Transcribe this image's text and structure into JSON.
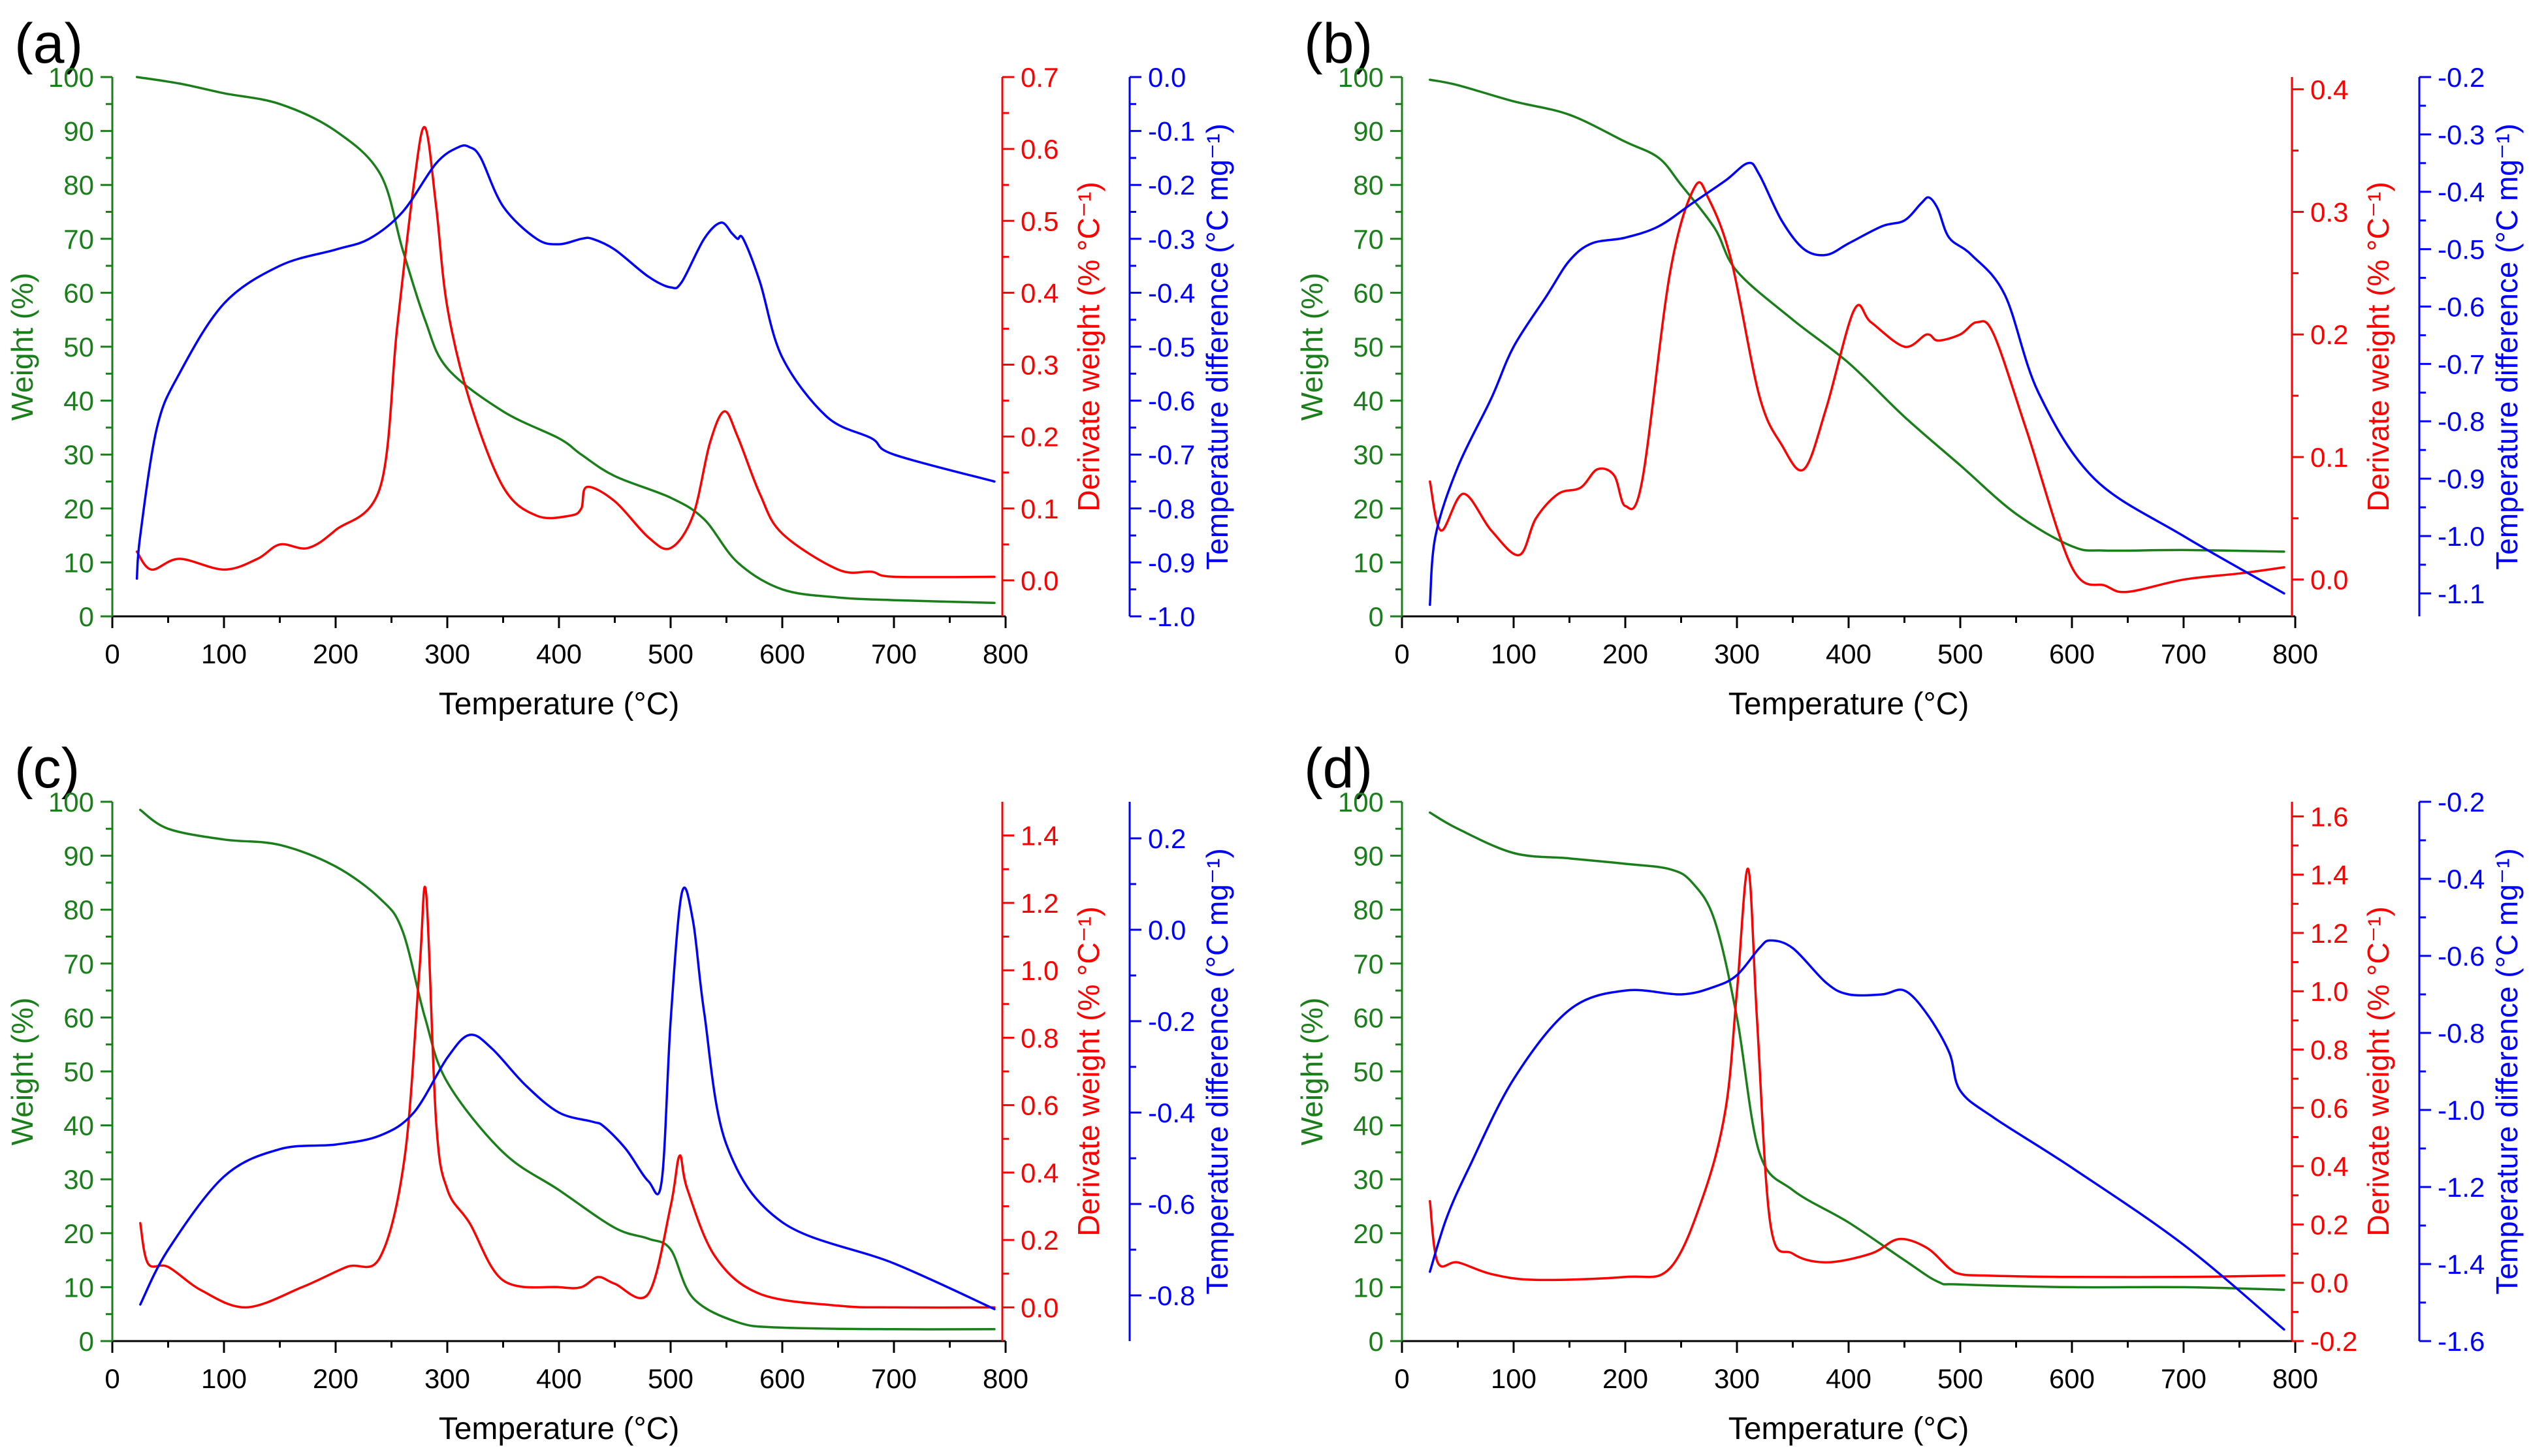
{
  "colors": {
    "weight": "#1a7f1a",
    "derivative": "#ff0000",
    "tdiff": "#0000ff",
    "axis": "#000000"
  },
  "chart_data": [
    {
      "panel_label": "(a)",
      "type": "line",
      "xlabel": "Temperature (°C)",
      "xlim": [
        0,
        800
      ],
      "xticks": [
        0,
        100,
        200,
        300,
        400,
        500,
        600,
        700,
        800
      ],
      "y1": {
        "label": "Weight (%)",
        "lim": [
          0,
          100
        ],
        "ticks": [
          0,
          10,
          20,
          30,
          40,
          50,
          60,
          70,
          80,
          90,
          100
        ]
      },
      "y2": {
        "label": "Derivate weight (% °C⁻¹)",
        "lim": [
          -0.05,
          0.7
        ],
        "ticks": [
          0.0,
          0.1,
          0.2,
          0.3,
          0.4,
          0.5,
          0.6,
          0.7
        ],
        "tick_labels": [
          "0.0",
          "0.1",
          "0.2",
          "0.3",
          "0.4",
          "0.5",
          "0.6",
          "0.7"
        ]
      },
      "y3": {
        "label": "Temperature difference (°C mg⁻¹)",
        "lim": [
          -1.0,
          0.0
        ],
        "ticks": [
          0.0,
          -0.1,
          -0.2,
          -0.3,
          -0.4,
          -0.5,
          -0.6,
          -0.7,
          -0.8,
          -0.9,
          -1.0
        ],
        "tick_labels": [
          "0.0",
          "-0.1",
          "-0.2",
          "-0.3",
          "-0.4",
          "-0.5",
          "-0.6",
          "-0.7",
          "-0.8",
          "-0.9",
          "-1.0"
        ]
      },
      "series": [
        {
          "axis": "y1",
          "color": "weight",
          "x": [
            22,
            60,
            100,
            150,
            200,
            240,
            260,
            280,
            300,
            350,
            400,
            420,
            450,
            500,
            530,
            560,
            600,
            650,
            700,
            790
          ],
          "values": [
            100,
            98.8,
            97,
            95,
            90,
            82,
            68,
            55,
            46,
            38,
            33,
            30,
            26,
            22,
            18,
            10,
            5,
            3.5,
            3,
            2.5
          ]
        },
        {
          "axis": "y2",
          "color": "derivative",
          "x": [
            22,
            35,
            60,
            100,
            130,
            150,
            175,
            200,
            240,
            255,
            270,
            280,
            290,
            300,
            320,
            350,
            380,
            410,
            420,
            425,
            450,
            480,
            500,
            520,
            535,
            548,
            560,
            580,
            600,
            650,
            680,
            700,
            790
          ],
          "values": [
            0.04,
            0.015,
            0.03,
            0.015,
            0.03,
            0.05,
            0.045,
            0.07,
            0.13,
            0.35,
            0.55,
            0.63,
            0.52,
            0.38,
            0.25,
            0.13,
            0.09,
            0.09,
            0.1,
            0.13,
            0.11,
            0.06,
            0.045,
            0.09,
            0.19,
            0.235,
            0.2,
            0.12,
            0.065,
            0.015,
            0.012,
            0.005,
            0.005
          ]
        },
        {
          "axis": "y3",
          "color": "tdiff",
          "x": [
            22,
            25,
            40,
            60,
            100,
            150,
            200,
            230,
            260,
            290,
            310,
            320,
            330,
            350,
            380,
            400,
            420,
            430,
            450,
            480,
            500,
            510,
            530,
            545,
            555,
            560,
            565,
            580,
            600,
            640,
            680,
            700,
            790
          ],
          "values": [
            -0.93,
            -0.85,
            -0.65,
            -0.55,
            -0.42,
            -0.35,
            -0.32,
            -0.3,
            -0.25,
            -0.16,
            -0.13,
            -0.13,
            -0.15,
            -0.24,
            -0.3,
            -0.31,
            -0.3,
            -0.3,
            -0.32,
            -0.37,
            -0.39,
            -0.38,
            -0.3,
            -0.27,
            -0.29,
            -0.3,
            -0.3,
            -0.38,
            -0.52,
            -0.63,
            -0.67,
            -0.7,
            -0.75
          ]
        }
      ]
    },
    {
      "panel_label": "(b)",
      "type": "line",
      "xlabel": "Temperature (°C)",
      "xlim": [
        0,
        800
      ],
      "xticks": [
        0,
        100,
        200,
        300,
        400,
        500,
        600,
        700,
        800
      ],
      "y1": {
        "label": "Weight (%)",
        "lim": [
          0,
          100
        ],
        "ticks": [
          0,
          10,
          20,
          30,
          40,
          50,
          60,
          70,
          80,
          90,
          100
        ]
      },
      "y2": {
        "label": "Derivate weight (% °C⁻¹)",
        "lim": [
          -0.03,
          0.41
        ],
        "ticks": [
          0.0,
          0.1,
          0.2,
          0.3,
          0.4
        ],
        "tick_labels": [
          "0.0",
          "0.1",
          "0.2",
          "0.3",
          "0.4"
        ]
      },
      "y3": {
        "label": "Temperature difference (°C mg⁻¹)",
        "lim": [
          -1.14,
          -0.2
        ],
        "ticks": [
          -0.2,
          -0.3,
          -0.4,
          -0.5,
          -0.6,
          -0.7,
          -0.8,
          -0.9,
          -1.0,
          -1.1
        ],
        "tick_labels": [
          "-0.2",
          "-0.3",
          "-0.4",
          "-0.5",
          "-0.6",
          "-0.7",
          "-0.8",
          "-0.9",
          "-1.0",
          "-1.1"
        ]
      },
      "series": [
        {
          "axis": "y1",
          "color": "weight",
          "x": [
            25,
            50,
            100,
            150,
            200,
            230,
            250,
            280,
            300,
            350,
            400,
            450,
            500,
            550,
            600,
            630,
            700,
            790
          ],
          "values": [
            99.5,
            98.5,
            95.5,
            93,
            88,
            85,
            80,
            72,
            64,
            55,
            47,
            37,
            28,
            19,
            13,
            12.2,
            12.3,
            12
          ]
        },
        {
          "axis": "y2",
          "color": "derivative",
          "x": [
            25,
            35,
            55,
            80,
            105,
            120,
            140,
            160,
            175,
            190,
            200,
            215,
            240,
            262,
            275,
            295,
            320,
            340,
            360,
            380,
            405,
            420,
            450,
            470,
            480,
            500,
            515,
            530,
            560,
            600,
            630,
            650,
            700,
            750,
            790
          ],
          "values": [
            0.08,
            0.04,
            0.07,
            0.04,
            0.02,
            0.05,
            0.07,
            0.075,
            0.09,
            0.085,
            0.06,
            0.08,
            0.25,
            0.32,
            0.31,
            0.26,
            0.15,
            0.11,
            0.09,
            0.14,
            0.22,
            0.21,
            0.19,
            0.2,
            0.195,
            0.2,
            0.21,
            0.2,
            0.12,
            0.01,
            -0.005,
            -0.01,
            0,
            0.005,
            0.01
          ]
        },
        {
          "axis": "y3",
          "color": "tdiff",
          "x": [
            25,
            30,
            50,
            80,
            100,
            130,
            150,
            170,
            200,
            230,
            260,
            290,
            310,
            320,
            340,
            360,
            380,
            400,
            430,
            450,
            465,
            472,
            480,
            490,
            510,
            540,
            570,
            620,
            700,
            790
          ],
          "values": [
            -1.12,
            -1.0,
            -0.88,
            -0.76,
            -0.67,
            -0.58,
            -0.52,
            -0.49,
            -0.48,
            -0.46,
            -0.42,
            -0.38,
            -0.35,
            -0.37,
            -0.45,
            -0.5,
            -0.51,
            -0.49,
            -0.46,
            -0.45,
            -0.42,
            -0.41,
            -0.43,
            -0.48,
            -0.51,
            -0.58,
            -0.75,
            -0.9,
            -1.0,
            -1.1
          ]
        }
      ]
    },
    {
      "panel_label": "(c)",
      "type": "line",
      "xlabel": "Temperature (°C)",
      "xlim": [
        0,
        800
      ],
      "xticks": [
        0,
        100,
        200,
        300,
        400,
        500,
        600,
        700,
        800
      ],
      "y1": {
        "label": "Weight (%)",
        "lim": [
          0,
          100
        ],
        "ticks": [
          0,
          10,
          20,
          30,
          40,
          50,
          60,
          70,
          80,
          90,
          100
        ]
      },
      "y2": {
        "label": "Derivate weight (% °C⁻¹)",
        "lim": [
          -0.1,
          1.5
        ],
        "ticks": [
          0.0,
          0.2,
          0.4,
          0.6,
          0.8,
          1.0,
          1.2,
          1.4
        ],
        "tick_labels": [
          "0.0",
          "0.2",
          "0.4",
          "0.6",
          "0.8",
          "1.0",
          "1.2",
          "1.4"
        ]
      },
      "y3": {
        "label": "Temperature difference (°C mg⁻¹)",
        "lim": [
          -0.9,
          0.28
        ],
        "ticks": [
          0.2,
          0.0,
          -0.2,
          -0.4,
          -0.6,
          -0.8
        ],
        "tick_labels": [
          "0.2",
          "0.0",
          "-0.2",
          "-0.4",
          "-0.6",
          "-0.8"
        ]
      },
      "series": [
        {
          "axis": "y1",
          "color": "weight",
          "x": [
            25,
            50,
            100,
            150,
            200,
            240,
            260,
            280,
            300,
            350,
            400,
            450,
            480,
            500,
            520,
            560,
            600,
            700,
            790
          ],
          "values": [
            98.5,
            95,
            93,
            92,
            88,
            82,
            76,
            60,
            48,
            35,
            28,
            21,
            19,
            17,
            8,
            3.5,
            2.5,
            2.2,
            2.2
          ]
        },
        {
          "axis": "y2",
          "color": "derivative",
          "x": [
            25,
            32,
            50,
            80,
            120,
            170,
            210,
            240,
            262,
            275,
            281,
            290,
            300,
            320,
            350,
            400,
            420,
            435,
            450,
            480,
            500,
            508,
            515,
            540,
            580,
            650,
            700,
            790
          ],
          "values": [
            0.25,
            0.13,
            0.12,
            0.05,
            0,
            0.06,
            0.12,
            0.15,
            0.45,
            1.0,
            1.23,
            0.55,
            0.35,
            0.25,
            0.08,
            0.06,
            0.06,
            0.09,
            0.07,
            0.04,
            0.3,
            0.45,
            0.35,
            0.15,
            0.04,
            0.005,
            0,
            0
          ]
        },
        {
          "axis": "y3",
          "color": "tdiff",
          "x": [
            25,
            50,
            100,
            150,
            200,
            240,
            270,
            300,
            320,
            340,
            370,
            400,
            430,
            440,
            460,
            480,
            492,
            500,
            510,
            520,
            530,
            550,
            600,
            700,
            790
          ],
          "values": [
            -0.82,
            -0.7,
            -0.54,
            -0.48,
            -0.47,
            -0.45,
            -0.4,
            -0.28,
            -0.23,
            -0.26,
            -0.34,
            -0.4,
            -0.42,
            -0.43,
            -0.48,
            -0.55,
            -0.55,
            -0.2,
            0.08,
            0.02,
            -0.18,
            -0.47,
            -0.64,
            -0.73,
            -0.83
          ]
        }
      ]
    },
    {
      "panel_label": "(d)",
      "type": "line",
      "xlabel": "Temperature (°C)",
      "xlim": [
        0,
        800
      ],
      "xticks": [
        0,
        100,
        200,
        300,
        400,
        500,
        600,
        700,
        800
      ],
      "y1": {
        "label": "Weight (%)",
        "lim": [
          0,
          100
        ],
        "ticks": [
          0,
          10,
          20,
          30,
          40,
          50,
          60,
          70,
          80,
          90,
          100
        ]
      },
      "y2": {
        "label": "Derivate weight (% °C⁻¹)",
        "lim": [
          -0.2,
          1.65
        ],
        "ticks": [
          -0.2,
          0.0,
          0.2,
          0.4,
          0.6,
          0.8,
          1.0,
          1.2,
          1.4,
          1.6
        ],
        "tick_labels": [
          "-0.2",
          "0.0",
          "0.2",
          "0.4",
          "0.6",
          "0.8",
          "1.0",
          "1.2",
          "1.4",
          "1.6"
        ]
      },
      "y3": {
        "label": "Temperature difference (°C mg⁻¹)",
        "lim": [
          -1.6,
          -0.2
        ],
        "ticks": [
          -0.2,
          -0.4,
          -0.6,
          -0.8,
          -1.0,
          -1.2,
          -1.4,
          -1.6
        ],
        "tick_labels": [
          "-0.2",
          "-0.4",
          "-0.6",
          "-0.8",
          "-1.0",
          "-1.2",
          "-1.4",
          "-1.6"
        ]
      },
      "series": [
        {
          "axis": "y1",
          "color": "weight",
          "x": [
            25,
            50,
            100,
            150,
            200,
            240,
            260,
            280,
            300,
            320,
            350,
            400,
            450,
            480,
            500,
            600,
            700,
            790
          ],
          "values": [
            98,
            95,
            90.5,
            89.5,
            88.5,
            87.5,
            85,
            78,
            60,
            35,
            28,
            22,
            15,
            11,
            10.5,
            10,
            10,
            9.5
          ]
        },
        {
          "axis": "y2",
          "color": "derivative",
          "x": [
            25,
            32,
            50,
            80,
            120,
            200,
            240,
            270,
            290,
            300,
            310,
            318,
            330,
            350,
            380,
            420,
            445,
            470,
            490,
            500,
            520,
            600,
            700,
            790
          ],
          "values": [
            0.28,
            0.07,
            0.07,
            0.03,
            0.01,
            0.02,
            0.05,
            0.3,
            0.6,
            1.0,
            1.42,
            0.9,
            0.2,
            0.1,
            0.07,
            0.1,
            0.15,
            0.12,
            0.05,
            0.03,
            0.025,
            0.02,
            0.02,
            0.025
          ]
        },
        {
          "axis": "y3",
          "color": "tdiff",
          "x": [
            25,
            40,
            60,
            100,
            150,
            200,
            250,
            280,
            300,
            320,
            330,
            350,
            380,
            400,
            430,
            450,
            470,
            490,
            500,
            530,
            600,
            700,
            790
          ],
          "values": [
            -1.42,
            -1.28,
            -1.15,
            -0.92,
            -0.74,
            -0.69,
            -0.7,
            -0.68,
            -0.65,
            -0.58,
            -0.56,
            -0.58,
            -0.67,
            -0.7,
            -0.7,
            -0.69,
            -0.75,
            -0.85,
            -0.95,
            -1.02,
            -1.15,
            -1.35,
            -1.57
          ]
        }
      ]
    }
  ]
}
